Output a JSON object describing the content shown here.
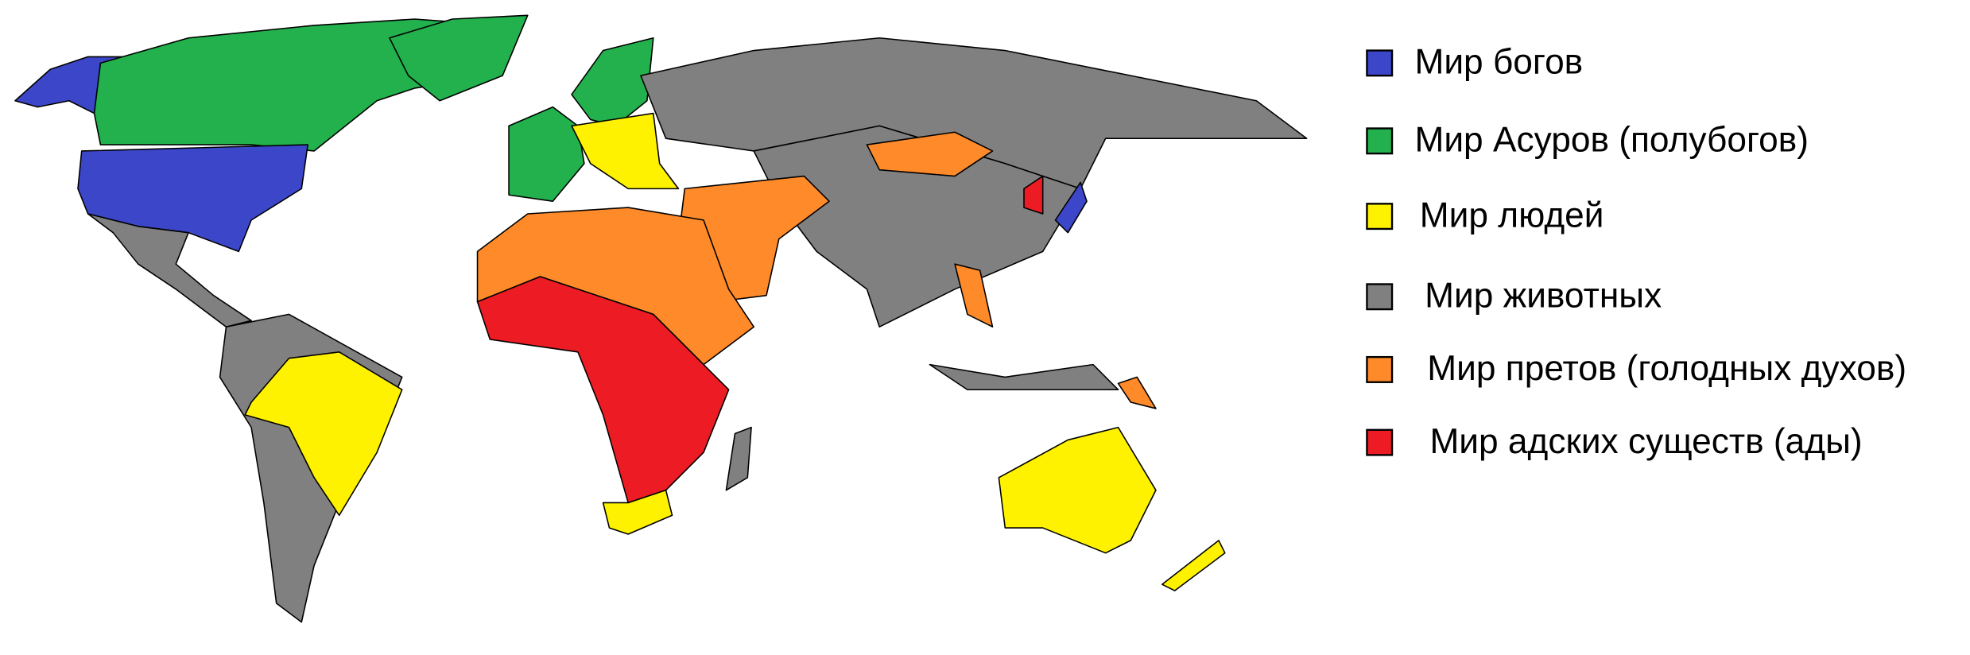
{
  "legend": {
    "items": [
      {
        "label": "Мир богов",
        "color": "#3c46c8"
      },
      {
        "label": "Мир Асуров (полубогов)",
        "color": "#22b14c"
      },
      {
        "label": "Мир людей",
        "color": "#fff200"
      },
      {
        "label": "Мир животных",
        "color": "#808080"
      },
      {
        "label": "Мир претов (голодных духов)",
        "color": "#ff8a2a"
      },
      {
        "label": "Мир адских существ (ады)",
        "color": "#ed1c24"
      }
    ]
  }
}
